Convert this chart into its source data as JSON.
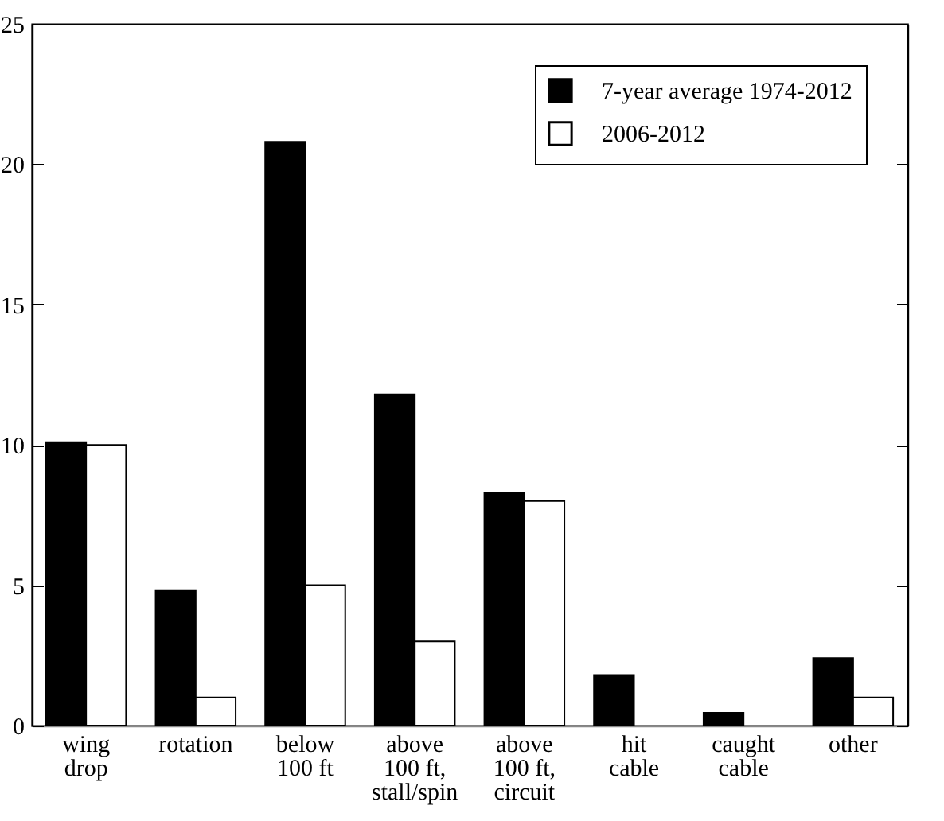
{
  "chart_data": {
    "type": "bar",
    "categories": [
      "wing\ndrop",
      "rotation",
      "below\n100 ft",
      "above\n100 ft,\nstall/spin",
      "above\n100 ft,\ncircuit",
      "hit\ncable",
      "caught\ncable",
      "other"
    ],
    "series": [
      {
        "name": "7-year average 1974-2012",
        "color": "#000000",
        "values": [
          10.1,
          4.8,
          20.8,
          11.8,
          8.3,
          1.8,
          0.45,
          2.4
        ]
      },
      {
        "name": "2006-2012",
        "color": "#ffffff",
        "values": [
          10,
          1,
          5,
          3,
          8,
          null,
          null,
          1
        ]
      }
    ],
    "ylim": [
      0,
      25
    ],
    "yticks": [
      0,
      5,
      10,
      15,
      20,
      25
    ],
    "grid": false,
    "legend": "top right"
  }
}
